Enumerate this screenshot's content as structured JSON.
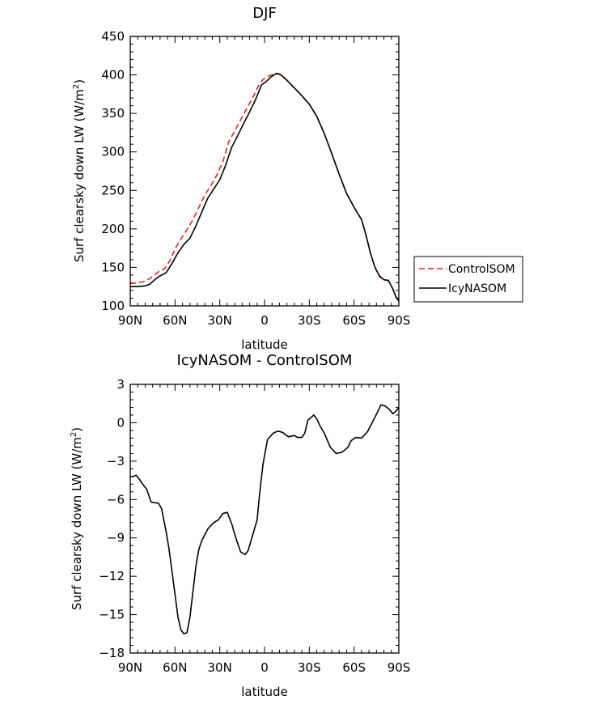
{
  "chart_data": [
    {
      "type": "line",
      "title": "DJF",
      "xlabel": "latitude",
      "ylabel": "Surf clearsky down LW (W/m²)",
      "xlim": [
        90,
        -90
      ],
      "ylim": [
        100,
        450
      ],
      "x_ticks": [
        90,
        60,
        30,
        0,
        -30,
        -60,
        -90
      ],
      "x_tick_labels": [
        "90N",
        "60N",
        "30N",
        "0",
        "30S",
        "60S",
        "90S"
      ],
      "y_ticks": [
        100,
        150,
        200,
        250,
        300,
        350,
        400,
        450
      ],
      "y_tick_labels": [
        "100",
        "150",
        "200",
        "250",
        "300",
        "350",
        "400",
        "450"
      ],
      "legend_position": "right",
      "series": [
        {
          "name": "ControlSOM",
          "color": "#e8251e",
          "dash": "dashed",
          "points": [
            [
              90,
              129
            ],
            [
              85,
              130
            ],
            [
              80,
              132
            ],
            [
              75,
              138
            ],
            [
              70,
              146
            ],
            [
              67,
              148
            ],
            [
              63,
              160
            ],
            [
              60,
              174
            ],
            [
              56,
              187
            ],
            [
              52,
              199
            ],
            [
              48,
              212
            ],
            [
              44,
              228
            ],
            [
              40,
              244
            ],
            [
              36,
              256
            ],
            [
              32,
              270
            ],
            [
              28,
              287
            ],
            [
              24,
              313
            ],
            [
              20,
              327
            ],
            [
              16,
              342
            ],
            [
              12,
              356
            ],
            [
              8,
              370
            ],
            [
              4,
              386
            ],
            [
              1,
              394
            ],
            [
              -2,
              398
            ],
            [
              -6,
              401
            ],
            [
              -9,
              402
            ],
            [
              -12,
              399
            ],
            [
              -16,
              391
            ],
            [
              -20,
              383
            ],
            [
              -25,
              373
            ],
            [
              -30,
              362
            ],
            [
              -35,
              346
            ],
            [
              -40,
              324
            ],
            [
              -45,
              298
            ],
            [
              -50,
              271
            ],
            [
              -55,
              246
            ],
            [
              -60,
              228
            ],
            [
              -65,
              212
            ],
            [
              -68,
              192
            ],
            [
              -71,
              168
            ],
            [
              -74,
              150
            ],
            [
              -77,
              138
            ],
            [
              -80,
              134
            ],
            [
              -83,
              133
            ],
            [
              -86,
              122
            ],
            [
              -88,
              112
            ],
            [
              -90,
              106
            ]
          ]
        },
        {
          "name": "IcyNASOM",
          "color": "#000000",
          "dash": "solid",
          "points": [
            [
              90,
              125
            ],
            [
              85,
              125
            ],
            [
              80,
              126
            ],
            [
              77,
              128
            ],
            [
              73,
              135
            ],
            [
              70,
              139
            ],
            [
              66,
              143
            ],
            [
              62,
              155
            ],
            [
              58,
              169
            ],
            [
              54,
              180
            ],
            [
              50,
              188
            ],
            [
              46,
              204
            ],
            [
              42,
              222
            ],
            [
              38,
              240
            ],
            [
              34,
              252
            ],
            [
              30,
              264
            ],
            [
              26,
              283
            ],
            [
              22,
              306
            ],
            [
              18,
              321
            ],
            [
              14,
              337
            ],
            [
              10,
              352
            ],
            [
              6,
              368
            ],
            [
              2,
              387
            ],
            [
              -1,
              391
            ],
            [
              -4,
              397
            ],
            [
              -8,
              402
            ],
            [
              -11,
              400
            ],
            [
              -15,
              393
            ],
            [
              -20,
              383
            ],
            [
              -25,
              373
            ],
            [
              -30,
              362
            ],
            [
              -35,
              346
            ],
            [
              -40,
              324
            ],
            [
              -45,
              298
            ],
            [
              -50,
              271
            ],
            [
              -55,
              246
            ],
            [
              -60,
              228
            ],
            [
              -65,
              212
            ],
            [
              -68,
              192
            ],
            [
              -71,
              168
            ],
            [
              -74,
              150
            ],
            [
              -77,
              139
            ],
            [
              -80,
              134
            ],
            [
              -83,
              133
            ],
            [
              -86,
              122
            ],
            [
              -88,
              112
            ],
            [
              -90,
              106
            ]
          ]
        }
      ]
    },
    {
      "type": "line",
      "title": "IcyNASOM - ControlSOM",
      "xlabel": "latitude",
      "ylabel": "Surf clearsky down LW (W/m²)",
      "xlim": [
        90,
        -90
      ],
      "ylim": [
        -18,
        3
      ],
      "x_ticks": [
        90,
        60,
        30,
        0,
        -30,
        -60,
        -90
      ],
      "x_tick_labels": [
        "90N",
        "60N",
        "30N",
        "0",
        "30S",
        "60S",
        "90S"
      ],
      "y_ticks": [
        -18,
        -15,
        -12,
        -9,
        -6,
        -3,
        0,
        3
      ],
      "y_tick_labels": [
        "−18",
        "−15",
        "−12",
        "−9",
        "−6",
        "−3",
        "0",
        "3"
      ],
      "series": [
        {
          "color": "#000000",
          "dash": "solid",
          "points": [
            [
              90,
              -4.2
            ],
            [
              88,
              -4.2
            ],
            [
              86,
              -4.1
            ],
            [
              84,
              -4.4
            ],
            [
              81,
              -4.9
            ],
            [
              79,
              -5.2
            ],
            [
              76,
              -6.2
            ],
            [
              71,
              -6.3
            ],
            [
              69,
              -6.7
            ],
            [
              66,
              -8.5
            ],
            [
              64,
              -9.9
            ],
            [
              62,
              -11.6
            ],
            [
              60,
              -13.4
            ],
            [
              58,
              -15.2
            ],
            [
              56,
              -16.2
            ],
            [
              54,
              -16.5
            ],
            [
              52,
              -16.4
            ],
            [
              50,
              -15.2
            ],
            [
              48,
              -13.2
            ],
            [
              46,
              -11.2
            ],
            [
              44,
              -9.9
            ],
            [
              42,
              -9.2
            ],
            [
              38,
              -8.3
            ],
            [
              34,
              -7.8
            ],
            [
              31,
              -7.6
            ],
            [
              28,
              -7.1
            ],
            [
              25,
              -7.0
            ],
            [
              22,
              -7.9
            ],
            [
              19,
              -9.1
            ],
            [
              16,
              -10.1
            ],
            [
              13,
              -10.3
            ],
            [
              11,
              -10.0
            ],
            [
              8,
              -8.8
            ],
            [
              5,
              -7.6
            ],
            [
              3,
              -5.2
            ],
            [
              1,
              -3.2
            ],
            [
              -2,
              -1.3
            ],
            [
              -6,
              -0.8
            ],
            [
              -9,
              -0.65
            ],
            [
              -12,
              -0.75
            ],
            [
              -16,
              -1.1
            ],
            [
              -20,
              -1.0
            ],
            [
              -22,
              -1.15
            ],
            [
              -25,
              -1.15
            ],
            [
              -27,
              -0.8
            ],
            [
              -29,
              0.2
            ],
            [
              -31,
              0.4
            ],
            [
              -33,
              0.6
            ],
            [
              -35,
              0.3
            ],
            [
              -37,
              -0.2
            ],
            [
              -40,
              -0.8
            ],
            [
              -44,
              -1.9
            ],
            [
              -48,
              -2.4
            ],
            [
              -52,
              -2.3
            ],
            [
              -56,
              -1.9
            ],
            [
              -58,
              -1.4
            ],
            [
              -61,
              -1.15
            ],
            [
              -65,
              -1.2
            ],
            [
              -69,
              -0.7
            ],
            [
              -73,
              0.2
            ],
            [
              -76,
              0.9
            ],
            [
              -78,
              1.4
            ],
            [
              -81,
              1.3
            ],
            [
              -84,
              1.0
            ],
            [
              -86,
              0.7
            ],
            [
              -88,
              0.9
            ],
            [
              -90,
              1.2
            ]
          ]
        }
      ]
    }
  ]
}
